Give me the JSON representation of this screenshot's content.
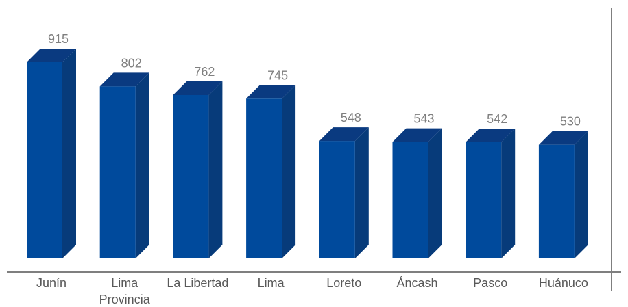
{
  "colors": {
    "bar_front": "#004A9C",
    "bar_top": "#0A3A80",
    "bar_side": "#073B7A",
    "axis": "#7f7f7f",
    "value_label": "#7f7f7f",
    "category_label": "#595959"
  },
  "chart_data": {
    "type": "bar",
    "style": "3d-column",
    "categories": [
      [
        "Junín"
      ],
      [
        "Lima",
        "Provincia"
      ],
      [
        "La Libertad"
      ],
      [
        "Lima"
      ],
      [
        "Loreto"
      ],
      [
        "Áncash"
      ],
      [
        "Pasco"
      ],
      [
        "Huánuco"
      ]
    ],
    "values": [
      915,
      802,
      762,
      745,
      548,
      543,
      542,
      530
    ],
    "title": "",
    "xlabel": "",
    "ylabel": "",
    "ylim": [
      0,
      1000
    ],
    "grid": false,
    "legend": "none",
    "data_labels": true
  }
}
